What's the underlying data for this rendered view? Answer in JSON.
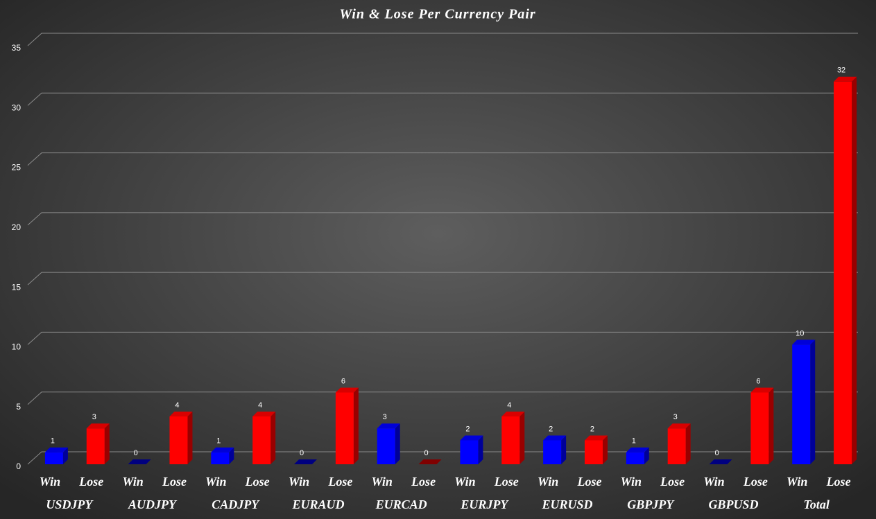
{
  "chart_data": {
    "type": "bar",
    "title": "Win & Lose Per Currency Pair",
    "categories": [
      "USDJPY",
      "AUDJPY",
      "CADJPY",
      "EURAUD",
      "EURCAD",
      "EURJPY",
      "EURUSD",
      "GBPJPY",
      "GBPUSD",
      "Total"
    ],
    "series": [
      {
        "name": "Win",
        "color": "#0000ff",
        "values": [
          1,
          0,
          1,
          0,
          3,
          2,
          2,
          1,
          0,
          10
        ]
      },
      {
        "name": "Lose",
        "color": "#ff0000",
        "values": [
          3,
          4,
          4,
          6,
          0,
          4,
          2,
          3,
          6,
          32
        ]
      }
    ],
    "ylim": [
      0,
      35
    ],
    "yticks": [
      0,
      5,
      10,
      15,
      20,
      25,
      30,
      35
    ],
    "grid": true,
    "data_labels": true
  }
}
